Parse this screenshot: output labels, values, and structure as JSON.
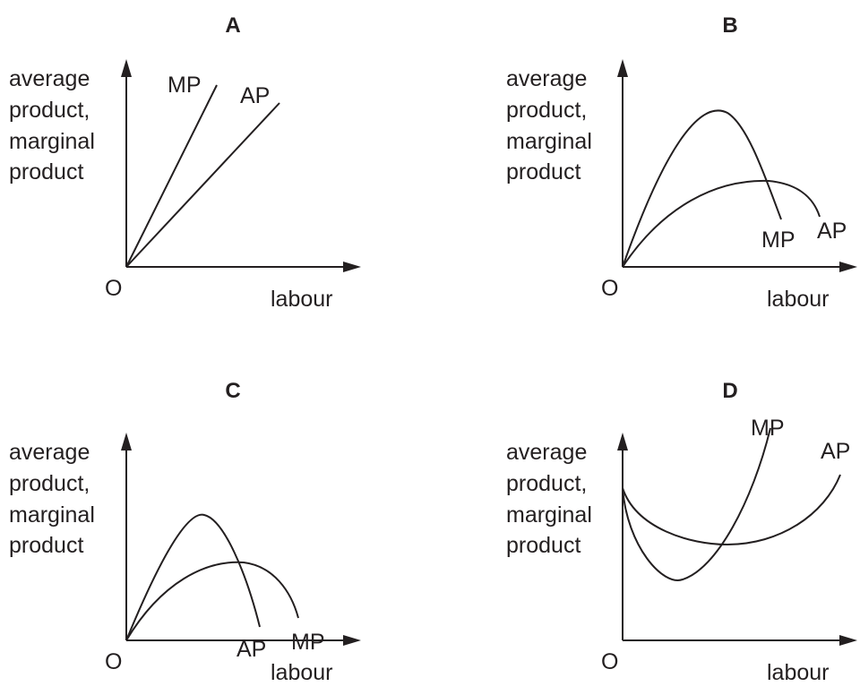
{
  "panels": [
    {
      "title": "A",
      "y_label": [
        "average",
        "product,",
        "marginal",
        "product"
      ],
      "origin": "O",
      "x_label": "labour",
      "curves": [
        {
          "label": "MP"
        },
        {
          "label": "AP"
        }
      ]
    },
    {
      "title": "B",
      "y_label": [
        "average",
        "product,",
        "marginal",
        "product"
      ],
      "origin": "O",
      "x_label": "labour",
      "curves": [
        {
          "label": "MP"
        },
        {
          "label": "AP"
        }
      ]
    },
    {
      "title": "C",
      "y_label": [
        "average",
        "product,",
        "marginal",
        "product"
      ],
      "origin": "O",
      "x_label": "labour",
      "curves": [
        {
          "label": "AP"
        },
        {
          "label": "MP"
        }
      ]
    },
    {
      "title": "D",
      "y_label": [
        "average",
        "product,",
        "marginal",
        "product"
      ],
      "origin": "O",
      "x_label": "labour",
      "curves": [
        {
          "label": "MP"
        },
        {
          "label": "AP"
        }
      ]
    }
  ]
}
